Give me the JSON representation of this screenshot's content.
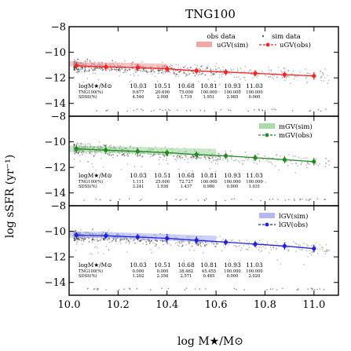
{
  "chart_data": {
    "type": "scatter",
    "title": "TNG100",
    "xlabel": "log M★/M⊙",
    "ylabel": "log sSFR (yr⁻¹)",
    "xlim": [
      10.0,
      11.1
    ],
    "ylim": [
      -15.0,
      -8.0
    ],
    "x_ticks": [
      "10.0",
      "10.2",
      "10.4",
      "10.6",
      "10.8",
      "11.0"
    ],
    "y_ticks": [
      "−8",
      "−10",
      "−12",
      "−14"
    ],
    "bin_centers": [
      10.03,
      10.51,
      10.68,
      10.81,
      10.93,
      11.03
    ],
    "legend_common": {
      "obs": "obs data",
      "sim": "sim data"
    },
    "panels": [
      {
        "name": "uGV",
        "color": "#ff1f1f",
        "band_color": "#f4a7a7",
        "legend_sim": "uGV(sim)",
        "legend_obs": "uGV(obs)",
        "table_header": "logM★/M⊙",
        "table_bins": [
          "10.03",
          "10.51",
          "10.68",
          "10.81",
          "10.93",
          "11.03"
        ],
        "row1_label": "TNG100(%)",
        "row1": [
          "9.677",
          "20.690",
          "75.000",
          "100.000",
          "100.000",
          "100.000"
        ],
        "row2_label": "SDSS(%)",
        "row2": [
          "4.546",
          "2.998",
          "1.719",
          "1.951",
          "2.985",
          "0.000"
        ],
        "obs_x": [
          10.03,
          10.15,
          10.28,
          10.4,
          10.52,
          10.64,
          10.76,
          10.88,
          11.0
        ],
        "obs_y": [
          -11.05,
          -11.15,
          -11.2,
          -11.3,
          -11.45,
          -11.55,
          -11.65,
          -11.75,
          -11.85
        ],
        "obs_err": [
          0.3,
          0.3,
          0.28,
          0.25,
          0.25,
          0.25,
          0.25,
          0.25,
          0.3
        ],
        "sim_band_x": [
          10.0,
          10.1,
          10.2,
          10.3,
          10.4
        ],
        "sim_band_lo": [
          -11.1,
          -11.2,
          -11.2,
          -11.25,
          -11.3
        ],
        "sim_band_hi": [
          -10.7,
          -10.8,
          -10.8,
          -10.85,
          -10.9
        ]
      },
      {
        "name": "mGV",
        "color": "#1f8a1f",
        "band_color": "#a9dca9",
        "legend_sim": "mGV(sim)",
        "legend_obs": "mGV(obs)",
        "table_header": "logM★/M⊙",
        "table_bins": [
          "10.03",
          "10.51",
          "10.68",
          "10.81",
          "10.93",
          "11.03"
        ],
        "row1_label": "TNG100(%)",
        "row1": [
          "1.111",
          "25.000",
          "72.727",
          "100.000",
          "100.000",
          "100.000"
        ],
        "row2_label": "SDSS(%)",
        "row2": [
          "3.241",
          "1.936",
          "1.437",
          "0.980",
          "0.000",
          "1.031"
        ],
        "obs_x": [
          10.03,
          10.15,
          10.28,
          10.4,
          10.52,
          10.64,
          10.76,
          10.88,
          11.0
        ],
        "obs_y": [
          -10.55,
          -10.65,
          -10.75,
          -10.85,
          -11.0,
          -11.1,
          -11.25,
          -11.4,
          -11.55
        ],
        "obs_err": [
          0.3,
          0.3,
          0.28,
          0.25,
          0.25,
          0.25,
          0.25,
          0.28,
          0.3
        ],
        "sim_band_x": [
          10.0,
          10.15,
          10.3,
          10.45,
          10.6
        ],
        "sim_band_lo": [
          -10.8,
          -10.85,
          -10.95,
          -11.0,
          -11.1
        ],
        "sim_band_hi": [
          -10.3,
          -10.35,
          -10.4,
          -10.5,
          -10.55
        ]
      },
      {
        "name": "lGV",
        "color": "#1f1fe6",
        "band_color": "#b3b8f2",
        "legend_sim": "lGV(sim)",
        "legend_obs": "lGV(obs)",
        "table_header": "logM★/M⊙",
        "table_bins": [
          "10.03",
          "10.51",
          "10.68",
          "10.81",
          "10.93",
          "11.03"
        ],
        "row1_label": "TNG100(%)",
        "row1": [
          "0.000",
          "0.000",
          "38.462",
          "45.455",
          "100.000",
          "100.000"
        ],
        "row2_label": "SDSS(%)",
        "row2": [
          "1.202",
          "2.356",
          "2.571",
          "0.485",
          "0.000",
          "2.020"
        ],
        "obs_x": [
          10.03,
          10.15,
          10.28,
          10.4,
          10.52,
          10.64,
          10.76,
          10.88,
          11.0
        ],
        "obs_y": [
          -10.3,
          -10.35,
          -10.45,
          -10.55,
          -10.7,
          -10.85,
          -11.0,
          -11.15,
          -11.35
        ],
        "obs_err": [
          0.25,
          0.25,
          0.25,
          0.35,
          0.3,
          0.25,
          0.25,
          0.28,
          0.3
        ],
        "sim_band_x": [
          10.0,
          10.15,
          10.3,
          10.45,
          10.6
        ],
        "sim_band_lo": [
          -10.5,
          -10.55,
          -10.65,
          -10.75,
          -10.9
        ],
        "sim_band_hi": [
          -10.0,
          -10.05,
          -10.15,
          -10.25,
          -10.35
        ]
      }
    ]
  }
}
